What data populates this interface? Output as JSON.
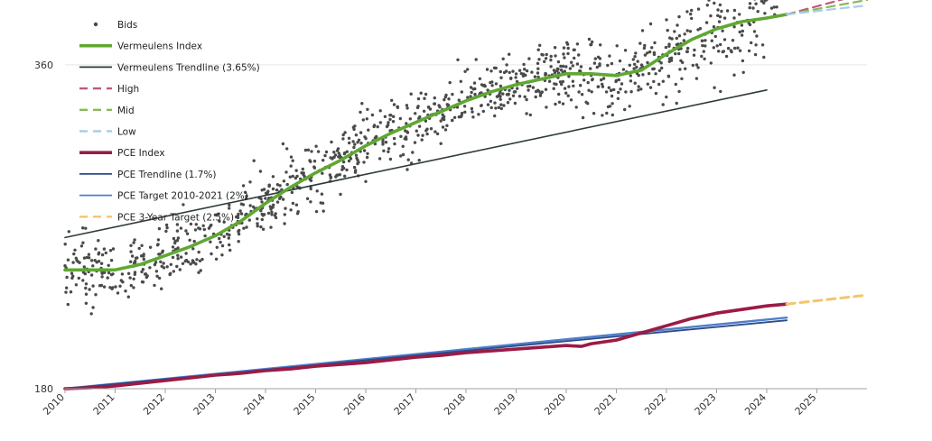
{
  "chart_data": {
    "type": "line",
    "xlim": [
      2010,
      2026
    ],
    "ylim": [
      180,
      390
    ],
    "grid": true,
    "legend_placement": "top-left",
    "x_ticks": [
      "2010",
      "2011",
      "2012",
      "2013",
      "2014",
      "2015",
      "2016",
      "2017",
      "2018",
      "2019",
      "2020",
      "2021",
      "2022",
      "2023",
      "2024",
      "2025"
    ],
    "y_ticks": [
      "180",
      "360"
    ],
    "colors": {
      "bids": "#4a4a4a",
      "vermeulens_index": "#5fa832",
      "vermeulens_trend": "#2f3a3a",
      "high": "#c05a74",
      "mid": "#8ab85a",
      "low": "#a9cde8",
      "pce_index": "#9b1b45",
      "pce_trend": "#2e4a8a",
      "pce_target": "#4f7fc9",
      "pce_3yr": "#f2c66b"
    },
    "legend": [
      {
        "key": "bids",
        "label": "Bids",
        "style": "dot"
      },
      {
        "key": "vermeulens_index",
        "label": "Vermeulens Index",
        "style": "thick"
      },
      {
        "key": "vermeulens_trend",
        "label": "Vermeulens Trendline (3.65%)",
        "style": "line"
      },
      {
        "key": "high",
        "label": "High",
        "style": "dash"
      },
      {
        "key": "mid",
        "label": "Mid",
        "style": "dash"
      },
      {
        "key": "low",
        "label": "Low",
        "style": "dash"
      },
      {
        "key": "pce_index",
        "label": "PCE Index",
        "style": "thick"
      },
      {
        "key": "pce_trend",
        "label": "PCE Trendline (1.7%)",
        "style": "line"
      },
      {
        "key": "pce_target",
        "label": "PCE Target 2010-2021 (2%)",
        "style": "line"
      },
      {
        "key": "pce_3yr",
        "label": "PCE 3-Year Target (2.5%)",
        "style": "dash"
      }
    ],
    "series": {
      "vermeulens_index": {
        "x": [
          2010,
          2010.5,
          2011,
          2011.5,
          2012,
          2012.5,
          2013,
          2013.5,
          2014,
          2014.5,
          2015,
          2015.5,
          2016,
          2016.5,
          2017,
          2017.5,
          2018,
          2018.5,
          2019,
          2019.5,
          2020,
          2020.5,
          2021,
          2021.5,
          2022,
          2022.5,
          2023,
          2023.5,
          2024,
          2024.4
        ],
        "y": [
          246,
          246,
          246,
          249,
          254,
          259,
          265,
          273,
          283,
          292,
          300,
          307,
          315,
          322,
          328,
          334,
          340,
          345,
          349,
          352,
          355,
          355,
          354,
          357,
          366,
          374,
          380,
          384,
          386,
          388
        ]
      },
      "vermeulens_trend": {
        "x": [
          2010,
          2024
        ],
        "y": [
          264,
          346
        ]
      },
      "high": {
        "x": [
          2024.4,
          2026
        ],
        "y": [
          388,
          400
        ]
      },
      "mid": {
        "x": [
          2024.4,
          2026
        ],
        "y": [
          388,
          396
        ]
      },
      "low": {
        "x": [
          2024.4,
          2026
        ],
        "y": [
          388,
          393
        ]
      },
      "pce_index": {
        "x": [
          2010,
          2010.5,
          2011,
          2011.5,
          2012,
          2012.5,
          2013,
          2013.5,
          2014,
          2014.5,
          2015,
          2015.5,
          2016,
          2016.5,
          2017,
          2017.5,
          2018,
          2018.5,
          2019,
          2019.5,
          2020,
          2020.3,
          2020.5,
          2021,
          2021.5,
          2022,
          2022.5,
          2023,
          2023.5,
          2024,
          2024.4
        ],
        "y": [
          180,
          180.5,
          181.5,
          183,
          184.5,
          186,
          187.5,
          188.5,
          190,
          191,
          192.5,
          193.5,
          194.5,
          196,
          197.5,
          198.5,
          200,
          201,
          202,
          203,
          204,
          203.5,
          205,
          207,
          211,
          215,
          219,
          222,
          224,
          226,
          227
        ]
      },
      "pce_trend": {
        "x": [
          2010,
          2024.4
        ],
        "y": [
          180,
          218
        ]
      },
      "pce_target": {
        "x": [
          2010,
          2024.4
        ],
        "y": [
          180,
          219.5
        ]
      },
      "pce_3yr": {
        "x": [
          2024.4,
          2026
        ],
        "y": [
          227,
          232
        ]
      }
    },
    "bids": {
      "seed": 7,
      "count": 1100,
      "x_range": [
        2010,
        2024.2
      ],
      "spread": 9
    }
  }
}
